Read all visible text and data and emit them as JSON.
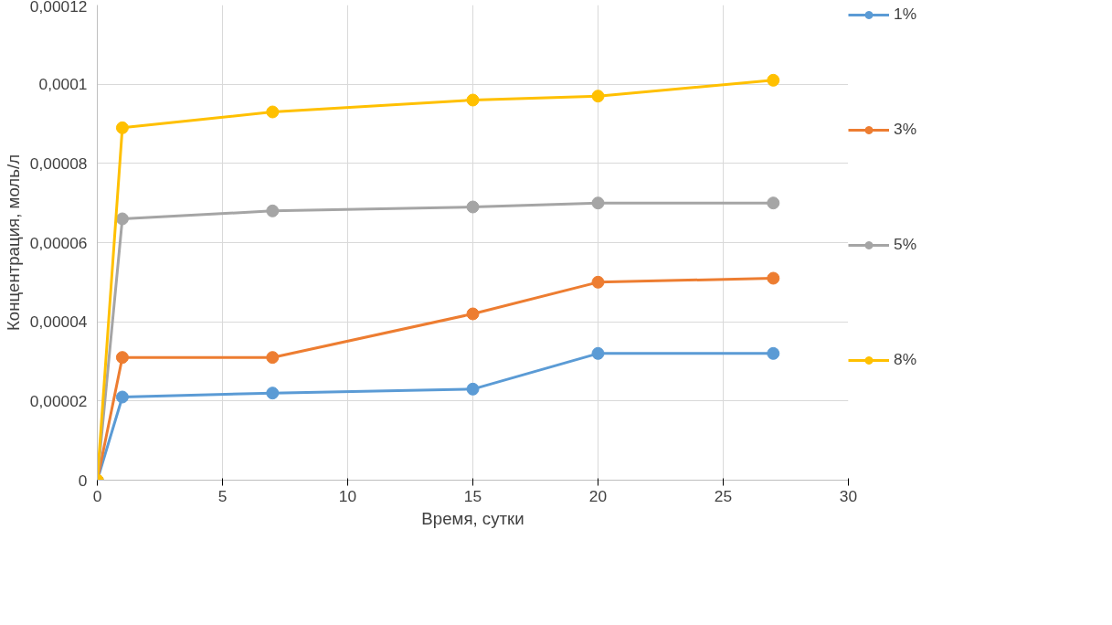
{
  "chart_data": {
    "type": "line",
    "xlabel": "Время, сутки",
    "ylabel": "Концентрация, моль/л",
    "x": [
      0,
      1,
      7,
      15,
      20,
      27
    ],
    "series": [
      {
        "name": "1%",
        "color": "#5b9bd5",
        "values": [
          0,
          2.1e-05,
          2.2e-05,
          2.3e-05,
          3.2e-05,
          3.2e-05
        ]
      },
      {
        "name": "3%",
        "color": "#ed7d31",
        "values": [
          0,
          3.1e-05,
          3.1e-05,
          4.2e-05,
          5e-05,
          5.1e-05
        ]
      },
      {
        "name": "5%",
        "color": "#a5a5a5",
        "values": [
          0,
          6.6e-05,
          6.8e-05,
          6.9e-05,
          7e-05,
          7e-05
        ]
      },
      {
        "name": "8%",
        "color": "#ffc000",
        "values": [
          0,
          8.9e-05,
          9.3e-05,
          9.6e-05,
          9.7e-05,
          0.000101
        ]
      }
    ],
    "xlim": [
      0,
      30
    ],
    "xticks": [
      0,
      5,
      10,
      15,
      20,
      25,
      30
    ],
    "ylim": [
      0,
      0.00012
    ],
    "yticks": [
      {
        "value": 0,
        "label": "0"
      },
      {
        "value": 2e-05,
        "label": "0,00002"
      },
      {
        "value": 4e-05,
        "label": "0,00004"
      },
      {
        "value": 6e-05,
        "label": "0,00006"
      },
      {
        "value": 8e-05,
        "label": "0,00008"
      },
      {
        "value": 0.0001,
        "label": "0,0001"
      },
      {
        "value": 0.00012,
        "label": "0,00012"
      }
    ],
    "grid": true,
    "legend": "right",
    "marker": "circle",
    "line_style": "solid"
  }
}
